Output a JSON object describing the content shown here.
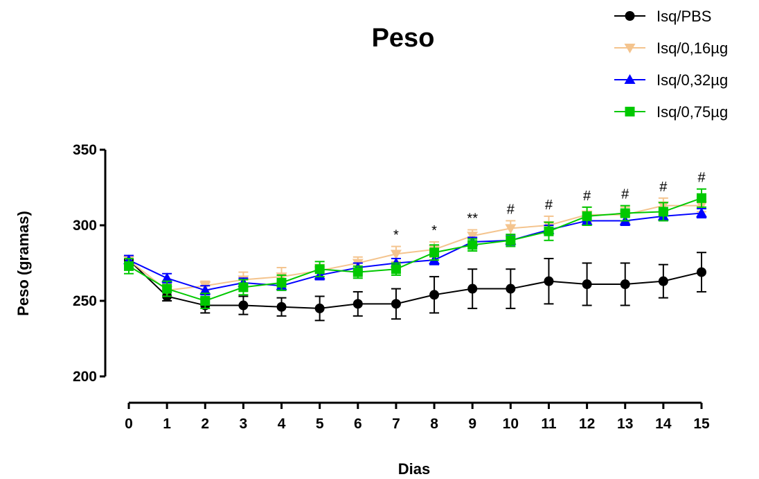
{
  "chart_data": {
    "type": "line",
    "title": "Peso",
    "xlabel": "Dias",
    "ylabel": "Peso (gramas)",
    "x": [
      0,
      1,
      2,
      3,
      4,
      5,
      6,
      7,
      8,
      9,
      10,
      11,
      12,
      13,
      14,
      15
    ],
    "xlim": [
      0,
      15
    ],
    "ylim": [
      200,
      350
    ],
    "yticks": [
      200,
      250,
      300,
      350
    ],
    "grid": false,
    "legend_position": "top-right",
    "series": [
      {
        "name": "Isq/PBS",
        "marker": "circle",
        "color": "#000000",
        "values": [
          277,
          253,
          247,
          247,
          246,
          245,
          248,
          248,
          254,
          258,
          258,
          263,
          261,
          261,
          263,
          269
        ],
        "errors": [
          3,
          3,
          5,
          6,
          6,
          8,
          8,
          10,
          12,
          13,
          13,
          15,
          14,
          14,
          11,
          13
        ]
      },
      {
        "name": "Isq/0,16µg",
        "marker": "triangle-down",
        "color": "#F4C48E",
        "values": [
          277,
          257,
          260,
          264,
          266,
          270,
          275,
          281,
          284,
          293,
          298,
          300,
          307,
          307,
          313,
          313
        ],
        "errors": [
          3,
          4,
          3,
          5,
          6,
          4,
          4,
          5,
          5,
          4,
          5,
          6,
          5,
          5,
          5,
          4
        ]
      },
      {
        "name": "Isq/0,32µg",
        "marker": "triangle-up",
        "color": "#0000FF",
        "values": [
          277,
          265,
          257,
          262,
          260,
          267,
          272,
          275,
          277,
          289,
          290,
          297,
          303,
          303,
          306,
          308
        ],
        "errors": [
          3,
          3,
          3,
          3,
          3,
          3,
          3,
          3,
          3,
          3,
          3,
          3,
          3,
          3,
          3,
          3
        ]
      },
      {
        "name": "Isq/0,75µg",
        "marker": "square",
        "color": "#00C800",
        "values": [
          273,
          258,
          250,
          259,
          262,
          271,
          269,
          271,
          282,
          287,
          290,
          296,
          306,
          308,
          309,
          318
        ],
        "errors": [
          5,
          5,
          5,
          5,
          5,
          5,
          4,
          4,
          5,
          4,
          4,
          6,
          6,
          5,
          6,
          6
        ]
      }
    ],
    "annotations": [
      {
        "x": 7,
        "text": "*"
      },
      {
        "x": 8,
        "text": "*"
      },
      {
        "x": 9,
        "text": "**"
      },
      {
        "x": 10,
        "text": "#"
      },
      {
        "x": 11,
        "text": "#"
      },
      {
        "x": 12,
        "text": "#"
      },
      {
        "x": 13,
        "text": "#"
      },
      {
        "x": 14,
        "text": "#"
      },
      {
        "x": 15,
        "text": "#"
      }
    ]
  }
}
